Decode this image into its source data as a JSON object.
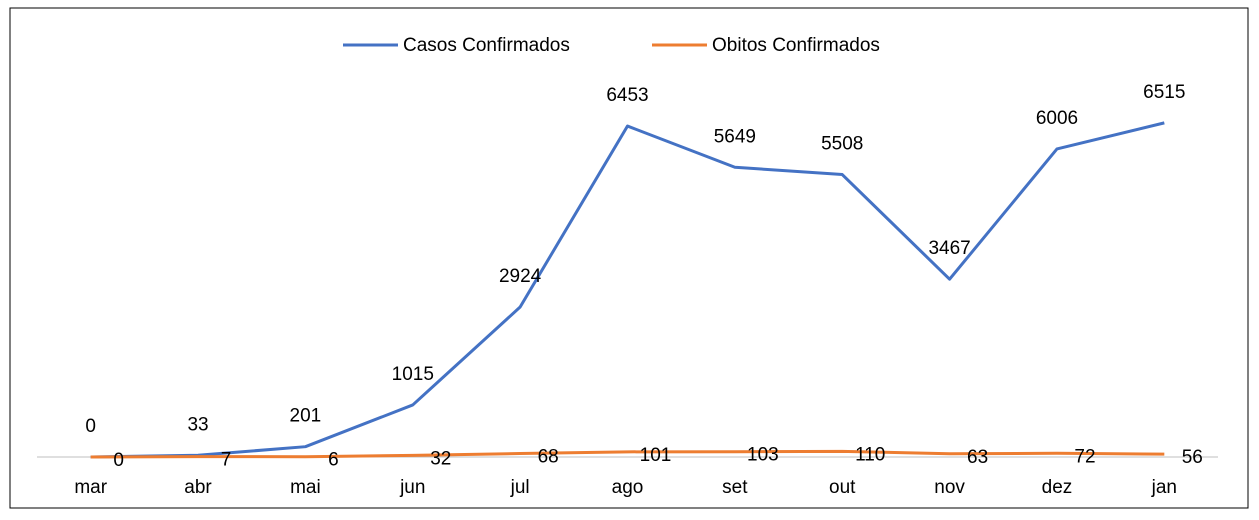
{
  "chart_data": {
    "type": "line",
    "categories": [
      "mar",
      "abr",
      "mai",
      "jun",
      "jul",
      "ago",
      "set",
      "out",
      "nov",
      "dez",
      "jan"
    ],
    "series": [
      {
        "name": "Casos Confirmados",
        "color": "#4472c4",
        "values": [
          0,
          33,
          201,
          1015,
          2924,
          6453,
          5649,
          5508,
          3467,
          6006,
          6515
        ]
      },
      {
        "name": "Obitos Confirmados",
        "color": "#ed7d31",
        "values": [
          0,
          7,
          6,
          32,
          68,
          101,
          103,
          110,
          63,
          72,
          56
        ]
      }
    ],
    "ylim": [
      0,
      7000
    ],
    "legend": "top"
  }
}
